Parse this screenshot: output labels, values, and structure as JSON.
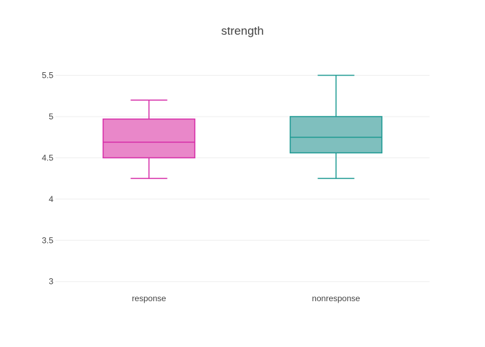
{
  "chart_data": {
    "type": "box",
    "title": "strength",
    "xlabel": "",
    "ylabel": "",
    "ylim": [
      2.88,
      5.74
    ],
    "yticks": [
      3,
      3.5,
      4,
      4.5,
      5,
      5.5
    ],
    "ytick_labels": [
      "3",
      "3.5",
      "4",
      "4.5",
      "5",
      "5.5"
    ],
    "categories": [
      "response",
      "nonresponse"
    ],
    "series": [
      {
        "category": "response",
        "min": 4.25,
        "q1": 4.5,
        "median": 4.69,
        "q3": 4.97,
        "max": 5.2,
        "color": "#d62ea8",
        "fill": "#e987c9"
      },
      {
        "category": "nonresponse",
        "min": 4.25,
        "q1": 4.56,
        "median": 4.75,
        "q3": 5.0,
        "max": 5.5,
        "color": "#1f9a93",
        "fill": "#7fbfbe"
      }
    ],
    "grid": true,
    "legend": "none"
  }
}
